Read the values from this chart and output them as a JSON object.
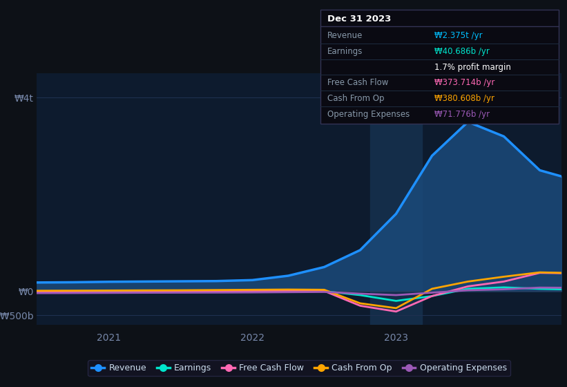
{
  "bg_color": "#0d1117",
  "plot_bg_color": "#0d1b2e",
  "grid_color": "#1e3050",
  "info_box": {
    "title": "Dec 31 2023",
    "rows": [
      {
        "label": "Revenue",
        "value": "₩2.375t /yr",
        "value_color": "#00bfff"
      },
      {
        "label": "Earnings",
        "value": "₩40.686b /yr",
        "value_color": "#00e5cc"
      },
      {
        "label": "",
        "value": "1.7% profit margin",
        "value_color": "#ffffff"
      },
      {
        "label": "Free Cash Flow",
        "value": "₩373.714b /yr",
        "value_color": "#ff69b4"
      },
      {
        "label": "Cash From Op",
        "value": "₩380.608b /yr",
        "value_color": "#ffa500"
      },
      {
        "label": "Operating Expenses",
        "value": "₩71.776b /yr",
        "value_color": "#9b59b6"
      }
    ]
  },
  "ytick_values": [
    4000,
    0,
    -500
  ],
  "ytick_labels": [
    "₩4t",
    "₩0",
    "-₩500b"
  ],
  "ylim": [
    -700,
    4500
  ],
  "xlim": [
    2020.5,
    2024.15
  ],
  "xtick_positions": [
    2021.0,
    2022.0,
    2023.0
  ],
  "xtick_labels": [
    "2021",
    "2022",
    "2023"
  ],
  "series": {
    "revenue": {
      "color": "#1e90ff",
      "fill_color": "#1a4a7a",
      "label": "Revenue",
      "x": [
        2020.5,
        2020.75,
        2021.0,
        2021.25,
        2021.5,
        2021.75,
        2022.0,
        2022.25,
        2022.5,
        2022.75,
        2023.0,
        2023.25,
        2023.5,
        2023.75,
        2024.0,
        2024.15
      ],
      "y": [
        180,
        185,
        195,
        200,
        205,
        210,
        230,
        320,
        500,
        850,
        1600,
        2800,
        3500,
        3200,
        2500,
        2375
      ]
    },
    "earnings": {
      "color": "#00e5cc",
      "label": "Earnings",
      "x": [
        2020.5,
        2020.75,
        2021.0,
        2021.25,
        2021.5,
        2021.75,
        2022.0,
        2022.25,
        2022.5,
        2022.75,
        2023.0,
        2023.25,
        2023.5,
        2023.75,
        2024.0,
        2024.15
      ],
      "y": [
        -20,
        -15,
        -10,
        -5,
        0,
        5,
        10,
        5,
        0,
        -80,
        -200,
        -100,
        50,
        80,
        50,
        40
      ]
    },
    "free_cash_flow": {
      "color": "#ff69b4",
      "label": "Free Cash Flow",
      "x": [
        2020.5,
        2020.75,
        2021.0,
        2021.25,
        2021.5,
        2021.75,
        2022.0,
        2022.25,
        2022.5,
        2022.75,
        2023.0,
        2023.25,
        2023.5,
        2023.75,
        2024.0,
        2024.15
      ],
      "y": [
        -30,
        -25,
        -20,
        -15,
        -10,
        -5,
        5,
        10,
        5,
        -300,
        -420,
        -100,
        100,
        200,
        380,
        373
      ]
    },
    "cash_from_op": {
      "color": "#ffa500",
      "label": "Cash From Op",
      "x": [
        2020.5,
        2020.75,
        2021.0,
        2021.25,
        2021.5,
        2021.75,
        2022.0,
        2022.25,
        2022.5,
        2022.75,
        2023.0,
        2023.25,
        2023.5,
        2023.75,
        2024.0,
        2024.15
      ],
      "y": [
        10,
        12,
        15,
        18,
        20,
        25,
        30,
        35,
        30,
        -250,
        -350,
        50,
        200,
        300,
        390,
        380
      ]
    },
    "operating_expenses": {
      "color": "#9b59b6",
      "label": "Operating Expenses",
      "x": [
        2020.5,
        2020.75,
        2021.0,
        2021.25,
        2021.5,
        2021.75,
        2022.0,
        2022.25,
        2022.5,
        2022.75,
        2023.0,
        2023.25,
        2023.5,
        2023.75,
        2024.0,
        2024.15
      ],
      "y": [
        -40,
        -38,
        -35,
        -32,
        -30,
        -28,
        -25,
        -20,
        -15,
        -50,
        -80,
        -30,
        20,
        40,
        75,
        72
      ]
    }
  },
  "legend": [
    {
      "label": "Revenue",
      "color": "#1e90ff"
    },
    {
      "label": "Earnings",
      "color": "#00e5cc"
    },
    {
      "label": "Free Cash Flow",
      "color": "#ff69b4"
    },
    {
      "label": "Cash From Op",
      "color": "#ffa500"
    },
    {
      "label": "Operating Expenses",
      "color": "#9b59b6"
    }
  ],
  "vline_x": 2023.0,
  "vline_color": "#1a3a5c"
}
